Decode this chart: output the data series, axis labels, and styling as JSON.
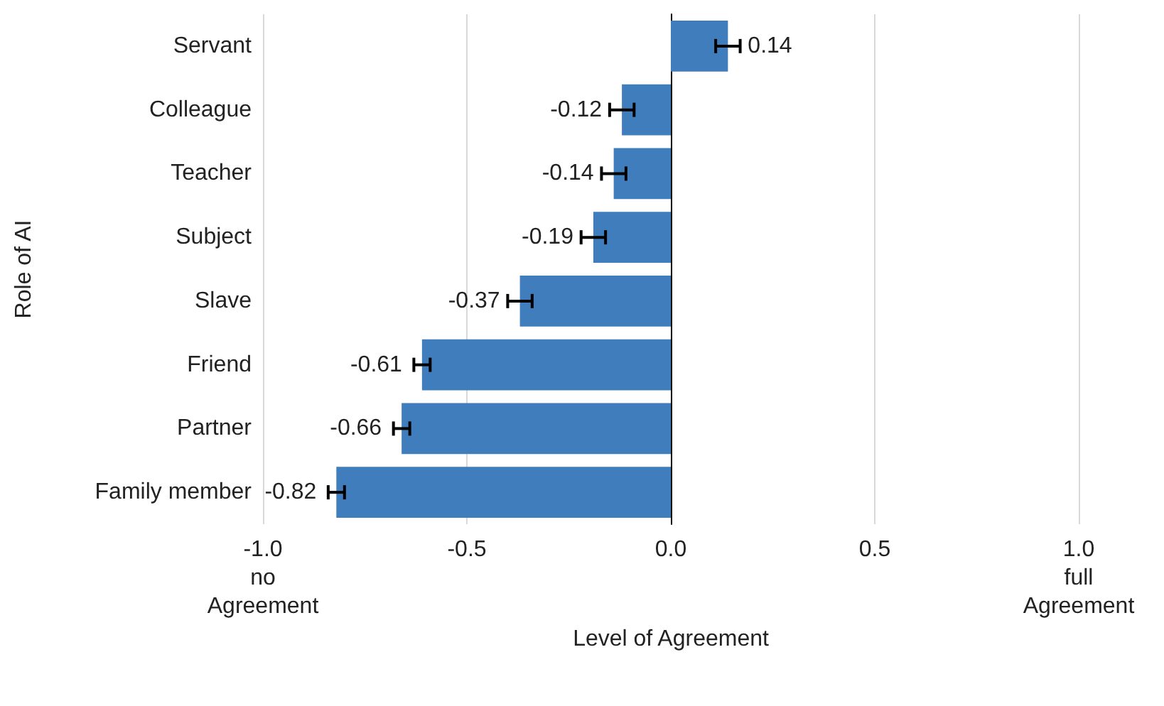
{
  "chart_data": {
    "type": "bar",
    "orientation": "horizontal",
    "xlabel": "Level of Agreement",
    "ylabel": "Role of AI",
    "categories": [
      "Servant",
      "Colleague",
      "Teacher",
      "Subject",
      "Slave",
      "Friend",
      "Partner",
      "Family member"
    ],
    "values": [
      0.14,
      -0.12,
      -0.14,
      -0.19,
      -0.37,
      -0.61,
      -0.66,
      -0.82
    ],
    "errors": [
      0.03,
      0.03,
      0.03,
      0.03,
      0.03,
      0.02,
      0.02,
      0.02
    ],
    "color": "#3f7dbd",
    "data_labels": true,
    "xlim": [
      -1,
      1
    ],
    "xticks": [
      {
        "value": -1,
        "label": "-1.0\nno\nAgreement"
      },
      {
        "value": -0.5,
        "label": "-0.5"
      },
      {
        "value": 0,
        "label": "0.0"
      },
      {
        "value": 0.5,
        "label": "0.5"
      },
      {
        "value": 1,
        "label": "1.0\nfull\nAgreement"
      }
    ],
    "grid": "x"
  }
}
